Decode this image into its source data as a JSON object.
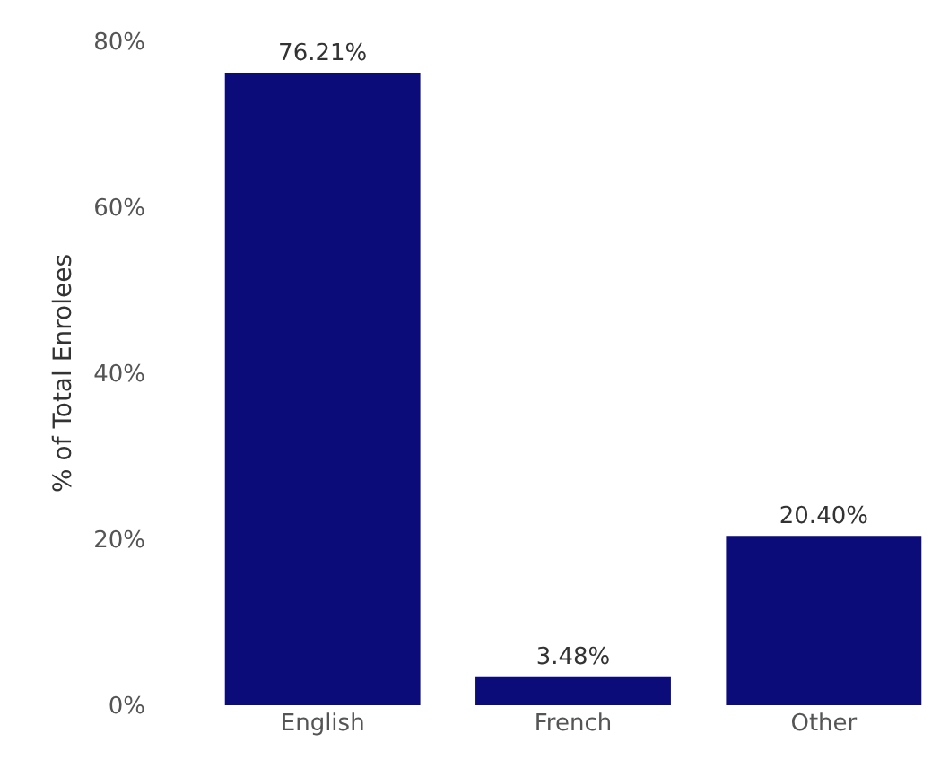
{
  "chart_data": {
    "type": "bar",
    "ylabel": "% of Total Enrolees",
    "categories": [
      "English",
      "French",
      "Other"
    ],
    "values": [
      76.21,
      3.48,
      20.4
    ],
    "value_labels": [
      "76.21%",
      "3.48%",
      "20.40%"
    ],
    "color": "#0b0b7a",
    "ylim": [
      0,
      80
    ],
    "yticks": [
      {
        "value": 0,
        "label": "0%"
      },
      {
        "value": 20,
        "label": "20%"
      },
      {
        "value": 40,
        "label": "40%"
      },
      {
        "value": 60,
        "label": "60%"
      },
      {
        "value": 80,
        "label": "80%"
      }
    ],
    "grid": false
  }
}
